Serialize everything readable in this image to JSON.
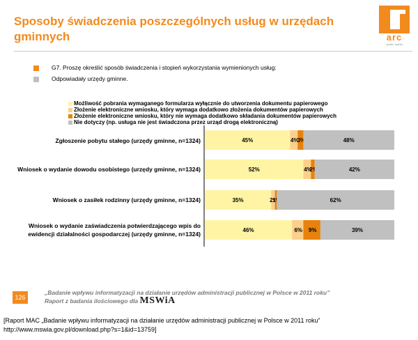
{
  "header": {
    "title": "Sposoby świadczenia poszczególnych usług w urzędach gminnych",
    "logo_text": "arc",
    "logo_tag": "rynek i opinia"
  },
  "question": {
    "text": "G7. Proszę określić sposób świadczenia i stopień wykorzystania wymienionych usług:",
    "base": "Odpowiadały urzędy gminne.",
    "question_color": "#f28a1e",
    "base_color": "#bfbfbf"
  },
  "chart_data": {
    "type": "bar",
    "orientation": "horizontal",
    "stacked": true,
    "categories": [
      "Zgłoszenie pobytu stałego (urzędy gminne, n=1324)",
      "Wniosek o wydanie dowodu osobistego (urzędy gminne, n=1324)",
      "Wniosek o zasiłek rodzinny (urzędy gminne, n=1324)",
      "Wniosek o wydanie zaświadczenia potwierdzającego wpis do ewidencji działalności gospodarczej (urzędy gminne, n=1324)"
    ],
    "series": [
      {
        "name": "Możliwość pobrania wymaganego formularza wyłącznie do utworzenia dokumentu papierowego",
        "color": "#fff4a3",
        "values": [
          45,
          52,
          35,
          46
        ],
        "labels": [
          "45%",
          "52%",
          "35%",
          "46%"
        ]
      },
      {
        "name": "Złożenie elektroniczne wniosku, który wymaga dodatkowo złożenia dokumentów papierowych",
        "color": "#fbd08a",
        "values": [
          4,
          4,
          2,
          6
        ],
        "labels": [
          "4%",
          "4%",
          "2%",
          "6%"
        ]
      },
      {
        "name": "Złożenie elektroniczne wniosku, który nie wymaga dodatkowo składania dokumentów papierowych",
        "color": "#e8820c",
        "values": [
          3,
          2,
          1,
          9
        ],
        "labels": [
          "3%",
          "2%",
          "1%",
          "9%"
        ]
      },
      {
        "name": "Nie dotyczy (np. usługa nie jest świadczona przez urząd drogą elektroniczną)",
        "color": "#c0c0c0",
        "values": [
          48,
          42,
          62,
          39
        ],
        "labels": [
          "48%",
          "42%",
          "62%",
          "39%"
        ]
      }
    ],
    "xlim": [
      0,
      100
    ],
    "grid": false,
    "legend": "top"
  },
  "footer": {
    "page_number": "126",
    "line1": "„Badanie wpływu informatyzacji na działanie urzędów administracji publicznej w Polsce w 2011 roku”",
    "line2": "Raport z badania ilościowego dla",
    "logo_text": "MSWiA"
  },
  "caption": {
    "line1": "[Raport MAC „Badanie wpływu informatyzacji na działanie urzędów administracji publicznej w Polsce w 2011 roku”",
    "line2": "http://www.mswia.gov.pl/download.php?s=1&id=13759]"
  }
}
